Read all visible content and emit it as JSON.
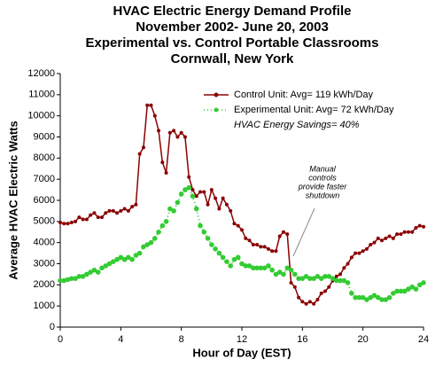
{
  "chart_data": {
    "type": "line",
    "title": [
      "HVAC Electric Energy Demand Profile",
      "November 2002- June 20, 2003",
      "Experimental vs. Control Portable Classrooms",
      "Cornwall, New York"
    ],
    "x_label": "Hour of Day (EST)",
    "y_label": "Average HVAC Electric Watts",
    "xlim": [
      0,
      24
    ],
    "xticks": [
      0,
      4,
      8,
      12,
      16,
      20,
      24
    ],
    "ylim": [
      0,
      12000
    ],
    "yticks": [
      0,
      1000,
      2000,
      3000,
      4000,
      5000,
      6000,
      7000,
      8000,
      9000,
      10000,
      11000,
      12000
    ],
    "grid": false,
    "legend_note": "HVAC Energy Savings= 40%",
    "annotation": [
      "Manual",
      "controls",
      "provide faster",
      "shutdown"
    ],
    "x": [
      0,
      0.25,
      0.5,
      0.75,
      1,
      1.25,
      1.5,
      1.75,
      2,
      2.25,
      2.5,
      2.75,
      3,
      3.25,
      3.5,
      3.75,
      4,
      4.25,
      4.5,
      4.75,
      5,
      5.25,
      5.5,
      5.75,
      6,
      6.25,
      6.5,
      6.75,
      7,
      7.25,
      7.5,
      7.75,
      8,
      8.25,
      8.5,
      8.75,
      9,
      9.25,
      9.5,
      9.75,
      10,
      10.25,
      10.5,
      10.75,
      11,
      11.25,
      11.5,
      11.75,
      12,
      12.25,
      12.5,
      12.75,
      13,
      13.25,
      13.5,
      13.75,
      14,
      14.25,
      14.5,
      14.75,
      15,
      15.25,
      15.5,
      15.75,
      16,
      16.25,
      16.5,
      16.75,
      17,
      17.25,
      17.5,
      17.75,
      18,
      18.25,
      18.5,
      18.75,
      19,
      19.25,
      19.5,
      19.75,
      20,
      20.25,
      20.5,
      20.75,
      21,
      21.25,
      21.5,
      21.75,
      22,
      22.25,
      22.5,
      22.75,
      23,
      23.25,
      23.5,
      23.75,
      24
    ],
    "series": [
      {
        "name": "Control Unit: Avg= 119 kWh/Day",
        "color": "#8b0000",
        "line_style": "solid",
        "values": [
          4950,
          4900,
          4900,
          4950,
          5000,
          5200,
          5100,
          5100,
          5300,
          5400,
          5200,
          5200,
          5400,
          5500,
          5500,
          5400,
          5500,
          5600,
          5500,
          5700,
          5800,
          8200,
          8500,
          10500,
          10500,
          10000,
          9300,
          7800,
          7300,
          9200,
          9300,
          9000,
          9200,
          9000,
          7100,
          6500,
          6200,
          6400,
          6400,
          5800,
          6500,
          6100,
          5600,
          6100,
          5800,
          5500,
          4900,
          4800,
          4600,
          4200,
          4100,
          3900,
          3900,
          3800,
          3800,
          3700,
          3600,
          3600,
          4300,
          4500,
          4400,
          2100,
          1900,
          1400,
          1200,
          1100,
          1200,
          1100,
          1300,
          1600,
          1700,
          1900,
          2200,
          2400,
          2500,
          2800,
          3000,
          3300,
          3500,
          3500,
          3600,
          3700,
          3900,
          4000,
          4200,
          4100,
          4200,
          4300,
          4200,
          4400,
          4400,
          4500,
          4500,
          4500,
          4700,
          4800,
          4750
        ]
      },
      {
        "name": "Experimental Unit: Avg= 72 kWh/Day",
        "color": "#33cc33",
        "line_style": "dotted",
        "values": [
          2200,
          2200,
          2250,
          2300,
          2300,
          2400,
          2400,
          2500,
          2600,
          2700,
          2600,
          2800,
          2900,
          3000,
          3100,
          3200,
          3300,
          3200,
          3300,
          3200,
          3400,
          3500,
          3800,
          3900,
          4000,
          4200,
          4500,
          4800,
          5000,
          5600,
          5500,
          5900,
          6300,
          6500,
          6600,
          6200,
          5600,
          4800,
          4500,
          4200,
          3900,
          3700,
          3500,
          3300,
          3100,
          2900,
          3200,
          3300,
          3000,
          2900,
          2900,
          2800,
          2800,
          2800,
          2800,
          2900,
          2700,
          2500,
          2600,
          2500,
          2800,
          2700,
          2500,
          2300,
          2300,
          2400,
          2300,
          2300,
          2400,
          2300,
          2400,
          2400,
          2300,
          2200,
          2200,
          2200,
          2100,
          1600,
          1400,
          1400,
          1400,
          1300,
          1400,
          1500,
          1400,
          1300,
          1300,
          1400,
          1600,
          1700,
          1700,
          1700,
          1800,
          1900,
          1800,
          2000,
          2100
        ]
      }
    ]
  }
}
